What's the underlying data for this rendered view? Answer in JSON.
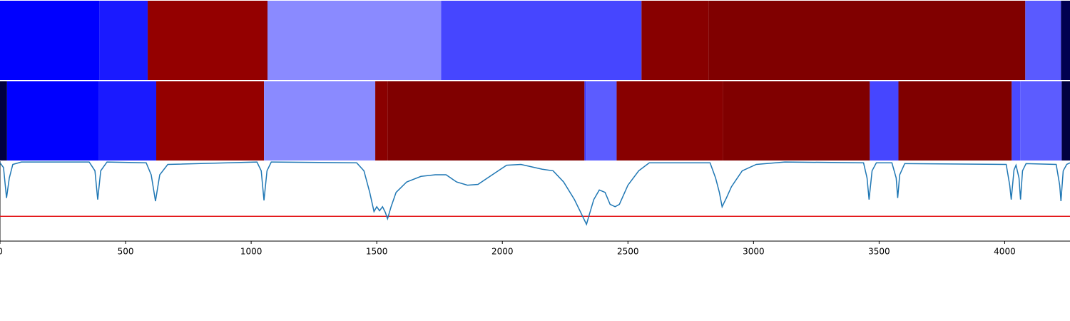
{
  "chart_data": [
    {
      "type": "segments",
      "bins": [
        0,
        395,
        588,
        1065,
        1756,
        2554,
        2821,
        4082,
        4224,
        4260
      ],
      "colors": [
        "#0000ff",
        "#1a1aff",
        "#940000",
        "#8a8aff",
        "#4646ff",
        "#880000",
        "#800000",
        "#5a5aff",
        "#000050"
      ]
    },
    {
      "type": "segments",
      "bins": [
        0,
        28,
        392,
        622,
        1051,
        1494,
        1543,
        2327,
        2335,
        2455,
        2878,
        3463,
        3577,
        4028,
        4062,
        4227,
        4260
      ],
      "colors": [
        "#000040",
        "#0000ff",
        "#1a1aff",
        "#940000",
        "#8a8aff",
        "#8a0000",
        "#800000",
        "#4040ff",
        "#5c5cff",
        "#880000",
        "#800000",
        "#4646ff",
        "#800000",
        "#4a4aff",
        "#5c5cff",
        "#000040"
      ]
    },
    {
      "type": "line",
      "x": [
        0,
        14,
        26,
        37,
        51,
        85,
        355,
        378,
        389,
        401,
        426,
        582,
        602,
        619,
        636,
        668,
        1023,
        1040,
        1051,
        1063,
        1080,
        1420,
        1449,
        1472,
        1489,
        1500,
        1511,
        1523,
        1534,
        1543,
        1557,
        1577,
        1619,
        1676,
        1733,
        1776,
        1818,
        1861,
        1903,
        1960,
        2017,
        2074,
        2159,
        2202,
        2244,
        2287,
        2315,
        2335,
        2347,
        2364,
        2386,
        2409,
        2429,
        2449,
        2466,
        2500,
        2543,
        2585,
        2827,
        2849,
        2864,
        2875,
        2892,
        2912,
        2955,
        3011,
        3125,
        3438,
        3452,
        3460,
        3472,
        3489,
        3551,
        3568,
        3574,
        3582,
        3602,
        4006,
        4020,
        4026,
        4037,
        4045,
        4057,
        4063,
        4071,
        4085,
        4205,
        4219,
        4224,
        4233,
        4247,
        4260
      ],
      "values": [
        0.98,
        0.92,
        0.54,
        0.79,
        0.96,
        0.99,
        0.99,
        0.88,
        0.52,
        0.88,
        0.99,
        0.98,
        0.83,
        0.5,
        0.83,
        0.96,
        0.99,
        0.88,
        0.51,
        0.88,
        0.99,
        0.98,
        0.88,
        0.61,
        0.37,
        0.43,
        0.38,
        0.43,
        0.36,
        0.28,
        0.43,
        0.61,
        0.74,
        0.81,
        0.83,
        0.83,
        0.74,
        0.7,
        0.71,
        0.83,
        0.95,
        0.96,
        0.9,
        0.88,
        0.74,
        0.52,
        0.34,
        0.21,
        0.34,
        0.52,
        0.64,
        0.61,
        0.46,
        0.43,
        0.46,
        0.7,
        0.88,
        0.98,
        0.98,
        0.79,
        0.61,
        0.43,
        0.54,
        0.68,
        0.88,
        0.96,
        0.99,
        0.98,
        0.79,
        0.52,
        0.88,
        0.98,
        0.98,
        0.79,
        0.54,
        0.83,
        0.97,
        0.96,
        0.7,
        0.52,
        0.89,
        0.95,
        0.79,
        0.52,
        0.88,
        0.97,
        0.96,
        0.7,
        0.5,
        0.88,
        0.96,
        0.98
      ],
      "color": "#1f77b4",
      "threshold": 0.31,
      "threshold_color": "#e41a1c",
      "xlim": [
        0,
        4260
      ],
      "ylim": [
        0,
        1
      ],
      "xticks": [
        0,
        500,
        1000,
        1500,
        2000,
        2500,
        3000,
        3500,
        4000
      ]
    }
  ]
}
